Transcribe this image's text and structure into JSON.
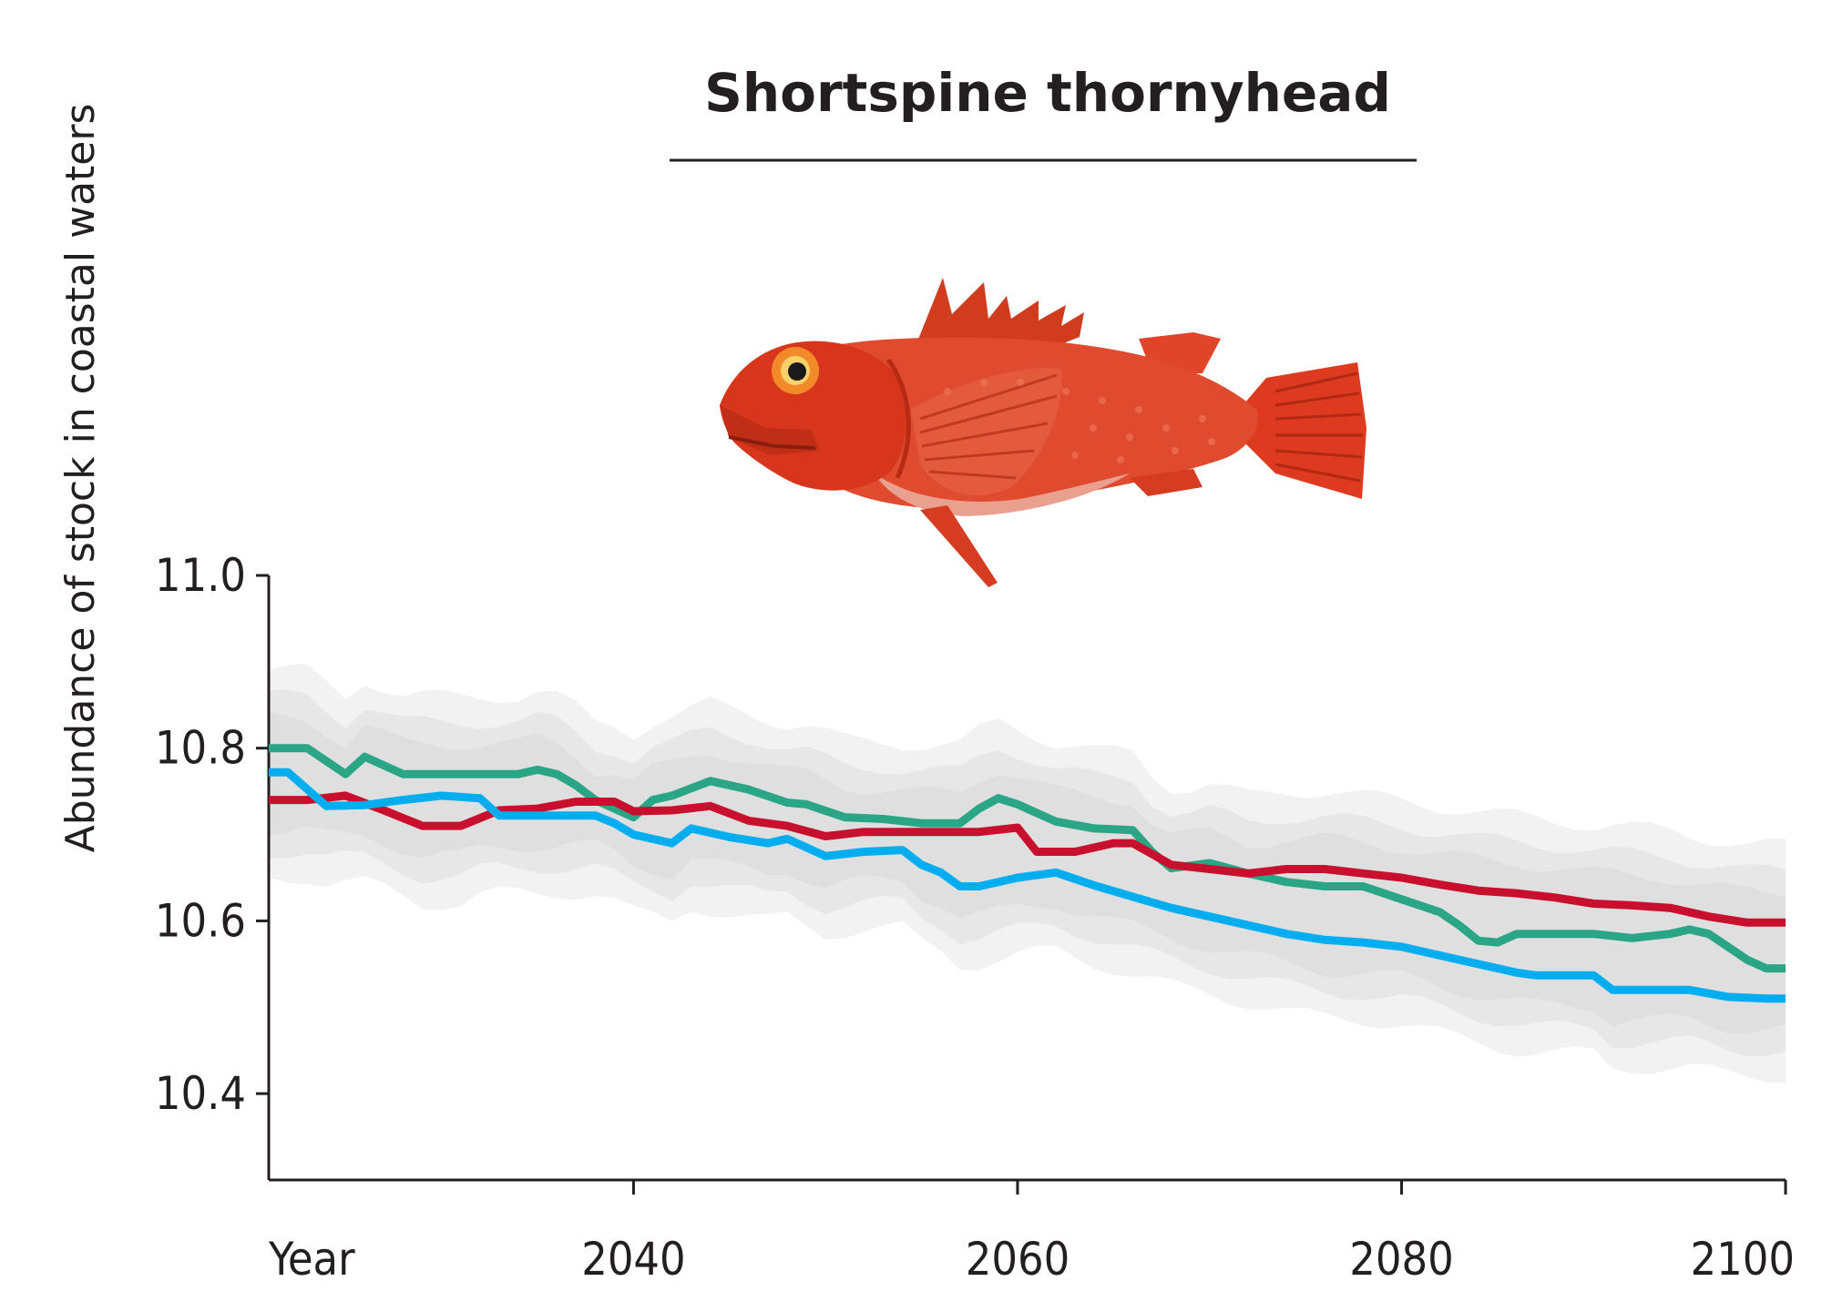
{
  "chart_data": {
    "type": "line",
    "title": "Shortspine thornyhead",
    "xlabel": "Year",
    "ylabel": "Abundance of stock in coastal waters",
    "xlim": [
      2021,
      2100
    ],
    "ylim": [
      10.3,
      11.0
    ],
    "x_ticks": [
      2040,
      2060,
      2080,
      2100
    ],
    "y_ticks": [
      10.4,
      10.6,
      10.8,
      11.0
    ],
    "y_tick_labels": [
      "10.4",
      "10.6",
      "10.8",
      "11.0"
    ],
    "x_tick_labels": [
      "2040",
      "2060",
      "2080",
      "2100"
    ],
    "grid": false,
    "legend": "none",
    "band_color": "#d9d9da",
    "series": [
      {
        "color": "#2aa686",
        "x": [
          2021,
          2023,
          2025,
          2026,
          2028,
          2030,
          2032,
          2033,
          2034,
          2035,
          2036,
          2037,
          2038,
          2039,
          2040,
          2041,
          2042,
          2044,
          2046,
          2048,
          2049,
          2051,
          2053,
          2055,
          2057,
          2058,
          2059,
          2060,
          2062,
          2064,
          2066,
          2067,
          2068,
          2070,
          2072,
          2074,
          2076,
          2078,
          2080,
          2082,
          2083,
          2084,
          2085,
          2086,
          2088,
          2090,
          2092,
          2094,
          2095,
          2096,
          2097,
          2098,
          2099,
          2100
        ],
        "y": [
          10.8,
          10.8,
          10.77,
          10.79,
          10.77,
          10.77,
          10.77,
          10.77,
          10.77,
          10.775,
          10.77,
          10.757,
          10.74,
          10.73,
          10.72,
          10.74,
          10.745,
          10.762,
          10.752,
          10.737,
          10.735,
          10.72,
          10.718,
          10.713,
          10.713,
          10.73,
          10.742,
          10.735,
          10.715,
          10.707,
          10.705,
          10.68,
          10.661,
          10.667,
          10.655,
          10.645,
          10.64,
          10.64,
          10.625,
          10.61,
          10.595,
          10.577,
          10.575,
          10.585,
          10.585,
          10.585,
          10.58,
          10.585,
          10.59,
          10.585,
          10.57,
          10.555,
          10.545,
          10.545
        ]
      },
      {
        "color": "#c8102e",
        "x": [
          2021,
          2023,
          2025,
          2027,
          2029,
          2031,
          2033,
          2035,
          2037,
          2039,
          2040,
          2042,
          2044,
          2046,
          2048,
          2050,
          2052,
          2054,
          2056,
          2058,
          2060,
          2061,
          2063,
          2065,
          2066,
          2068,
          2070,
          2072,
          2074,
          2076,
          2078,
          2080,
          2082,
          2084,
          2086,
          2088,
          2090,
          2092,
          2094,
          2096,
          2098,
          2100
        ],
        "y": [
          10.74,
          10.74,
          10.745,
          10.728,
          10.71,
          10.71,
          10.728,
          10.73,
          10.738,
          10.738,
          10.727,
          10.728,
          10.733,
          10.716,
          10.71,
          10.698,
          10.703,
          10.703,
          10.703,
          10.703,
          10.708,
          10.68,
          10.68,
          10.69,
          10.69,
          10.665,
          10.66,
          10.655,
          10.66,
          10.66,
          10.655,
          10.65,
          10.642,
          10.635,
          10.632,
          10.627,
          10.62,
          10.618,
          10.615,
          10.605,
          10.598,
          10.598
        ]
      },
      {
        "color": "#00aeef",
        "x": [
          2021,
          2022,
          2024,
          2026,
          2028,
          2030,
          2032,
          2033,
          2034,
          2036,
          2038,
          2039,
          2040,
          2042,
          2043,
          2045,
          2047,
          2048,
          2050,
          2052,
          2054,
          2055,
          2056,
          2057,
          2058,
          2060,
          2062,
          2064,
          2066,
          2068,
          2070,
          2072,
          2073,
          2074,
          2076,
          2078,
          2080,
          2082,
          2084,
          2086,
          2087,
          2088,
          2090,
          2091,
          2093,
          2095,
          2097,
          2099,
          2100
        ],
        "y": [
          10.772,
          10.772,
          10.733,
          10.734,
          10.74,
          10.745,
          10.742,
          10.722,
          10.722,
          10.722,
          10.722,
          10.713,
          10.7,
          10.69,
          10.707,
          10.697,
          10.69,
          10.695,
          10.675,
          10.68,
          10.682,
          10.665,
          10.656,
          10.64,
          10.64,
          10.65,
          10.656,
          10.641,
          10.628,
          10.615,
          10.605,
          10.595,
          10.59,
          10.585,
          10.578,
          10.575,
          10.57,
          10.56,
          10.55,
          10.54,
          10.537,
          10.537,
          10.537,
          10.52,
          10.52,
          10.52,
          10.512,
          10.51,
          10.51
        ]
      }
    ]
  },
  "image": {
    "name": "shortspine-thornyhead-fish-photo"
  }
}
